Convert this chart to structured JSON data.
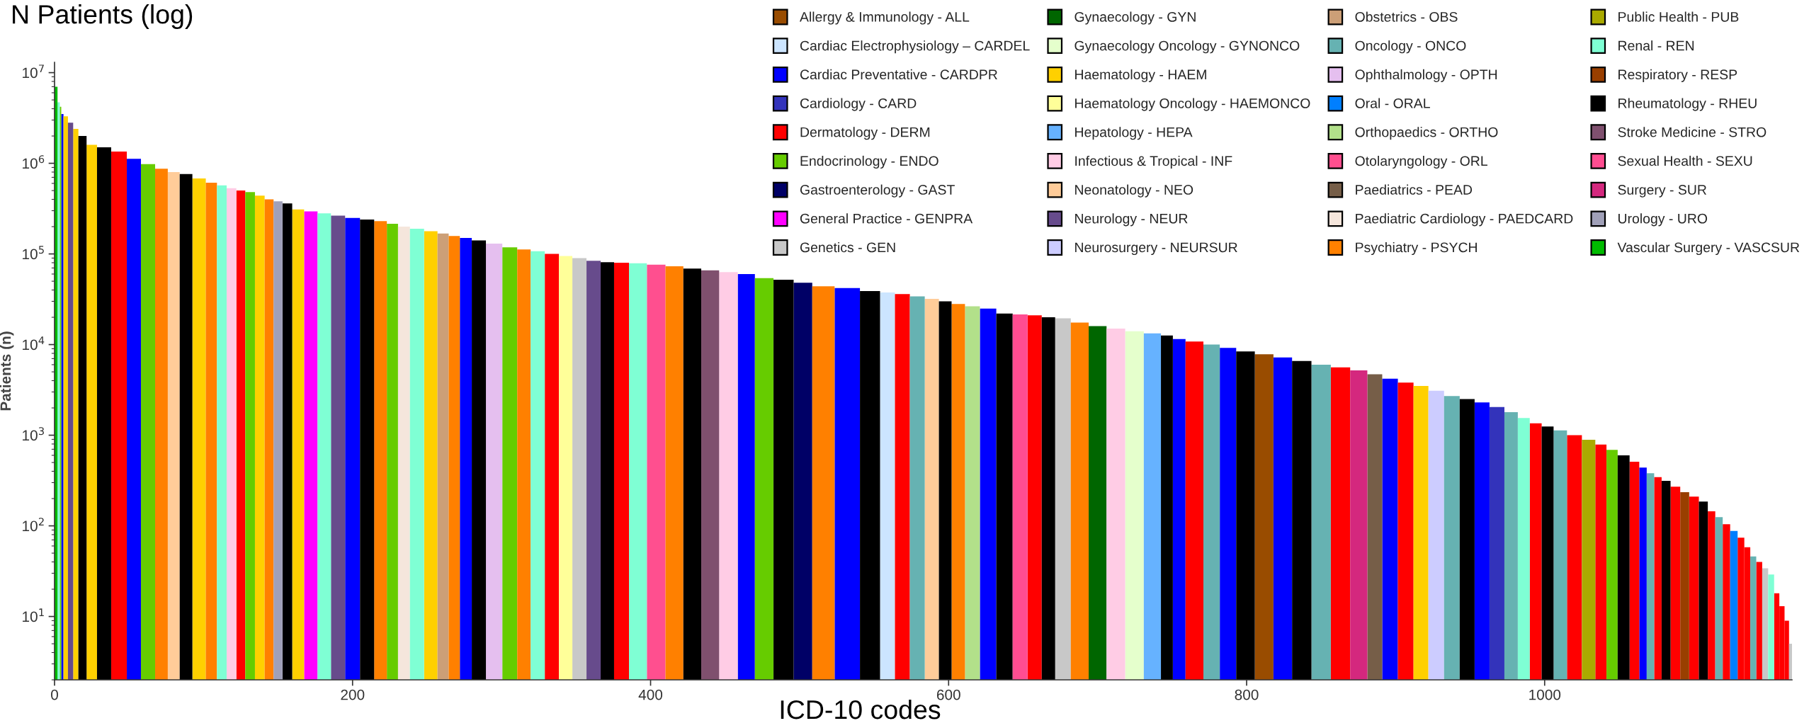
{
  "chart_data": {
    "type": "bar",
    "title": "N Patients (log)",
    "xlabel": "ICD-10 codes",
    "ylabel": "Patients (n)",
    "log": "y",
    "xlim": [
      0,
      1166
    ],
    "xticks": [
      0,
      200,
      400,
      600,
      800,
      1000
    ],
    "ylim": [
      2,
      13000000
    ],
    "yticks": [
      {
        "value": 10,
        "label": "10$^{1}$"
      },
      {
        "value": 100,
        "label": "10$^{2}$"
      },
      {
        "value": 1000,
        "label": "10$^{3}$"
      },
      {
        "value": 10000,
        "label": "10$^{4}$"
      },
      {
        "value": 100000,
        "label": "10$^{5}$"
      },
      {
        "value": 1000000,
        "label": "10$^{6}$"
      },
      {
        "value": 10000000,
        "label": "10$^{7}$"
      }
    ],
    "legend": "top right",
    "series": [
      {
        "name": "Allergy & Immunology - ALL",
        "color": "#994c00",
        "x": [
          812
        ],
        "values": [
          7800
        ]
      },
      {
        "name": "Cardiac Electrophysiology – CARDEL",
        "color": "#cce5ff",
        "x": [
          559
        ],
        "values": [
          37500
        ]
      },
      {
        "name": "Cardiac Preventative - CARDPR",
        "color": "#0000ff",
        "x": [
          5,
          53,
          200,
          276,
          465,
          532,
          626,
          753,
          787,
          824,
          896,
          958,
          1066
        ],
        "values": [
          3500000,
          1120000,
          250000,
          150000,
          60000,
          42000,
          25000,
          11500,
          9200,
          7200,
          4200,
          2300,
          440
        ]
      },
      {
        "name": "Cardiology - CARD",
        "color": "#3333bb",
        "x": [
          968
        ],
        "values": [
          2050
        ]
      },
      {
        "name": "Dermatology - DERM",
        "color": "#ff0000",
        "x": [
          44,
          125,
          334,
          380,
          569,
          658,
          765,
          863,
          907,
          994,
          1020,
          1038,
          1061,
          1076,
          1088,
          1100,
          1112,
          1122,
          1132,
          1136,
          1144,
          1156,
          1159,
          1163
        ],
        "values": [
          1350000,
          500000,
          100000,
          80000,
          36000,
          21000,
          10800,
          5600,
          3800,
          1350,
          1000,
          790,
          510,
          345,
          270,
          210,
          145,
          104,
          74,
          58,
          40,
          18,
          13,
          9
        ]
      },
      {
        "name": "Endocrinology - ENDO",
        "color": "#66cc00",
        "x": [
          4,
          63,
          131,
          227,
          306,
          475,
          1045
        ],
        "values": [
          4200000,
          980000,
          480000,
          215000,
          118000,
          54000,
          690
        ]
      },
      {
        "name": "Gastroenterology - GAST",
        "color": "#000066",
        "x": [
          502
        ],
        "values": [
          48000
        ]
      },
      {
        "name": "General Practice - GENPRA",
        "color": "#ff00ff",
        "x": [
          172
        ],
        "values": [
          295000
        ]
      },
      {
        "name": "Genetics - GEN",
        "color": "#c8c8c8",
        "x": [
          352,
          676,
          1148,
          1165
        ],
        "values": [
          90000,
          19500,
          34,
          5
        ]
      },
      {
        "name": "Gynaecology - GYN",
        "color": "#006600",
        "x": [
          700
        ],
        "values": [
          16000
        ]
      },
      {
        "name": "Gynaecology Oncology - GYNONCO",
        "color": "#e5ffcc",
        "x": [
          725
        ],
        "values": [
          14000
        ]
      },
      {
        "name": "Haematology - HAEM",
        "color": "#ffd000",
        "x": [
          7,
          14,
          25,
          97,
          138,
          163,
          253,
          917
        ],
        "values": [
          3300000,
          2400000,
          1600000,
          680000,
          440000,
          310000,
          178000,
          3500
        ]
      },
      {
        "name": "Haematology Oncology - HAEMONCO",
        "color": "#ffff99",
        "x": [
          343
        ],
        "values": [
          95000
        ]
      },
      {
        "name": "Hepatology - HEPA",
        "color": "#66b2ff",
        "x": [
          737
        ],
        "values": [
          13300
        ]
      },
      {
        "name": "Infectious & Tropical - INF",
        "color": "#ffcce5",
        "x": [
          119,
          452,
          712
        ],
        "values": [
          530000,
          63000,
          15000
        ]
      },
      {
        "name": "Neonatology - NEO",
        "color": "#ffcc99",
        "x": [
          80,
          589
        ],
        "values": [
          800000,
          32000
        ]
      },
      {
        "name": "Neurology - NEUR",
        "color": "#674b8c",
        "x": [
          11,
          190,
          362
        ],
        "values": [
          2800000,
          265000,
          84000
        ]
      },
      {
        "name": "Neurosurgery - NEURSUR",
        "color": "#ccccff",
        "x": [
          927
        ],
        "values": [
          3100
        ]
      },
      {
        "name": "Obstetrics - OBS",
        "color": "#cc9f77",
        "x": [
          261
        ],
        "values": [
          168000
        ]
      },
      {
        "name": "Oncology - ONCO",
        "color": "#66b2b2",
        "x": [
          579,
          777,
          850,
          938,
          978,
          1010,
          1071,
          1117,
          1140
        ],
        "values": [
          34000,
          10000,
          6000,
          2700,
          1800,
          1130,
          380,
          125,
          46
        ]
      },
      {
        "name": "Ophthalmology - OPTH",
        "color": "#e5bfef",
        "x": [
          295
        ],
        "values": [
          130000
        ]
      },
      {
        "name": "Oral - ORAL",
        "color": "#007fff",
        "x": [
          1127
        ],
        "values": [
          88
        ]
      },
      {
        "name": "Orthopaedics - ORTHO",
        "color": "#b2e08a",
        "x": [
          616
        ],
        "values": [
          26500
        ]
      },
      {
        "name": "Otolaryngology - ORL",
        "color": "#ff4f8f",
        "x": [
          404
        ],
        "values": [
          76000
        ]
      },
      {
        "name": "Paediatrics - PEAD",
        "color": "#765e48",
        "x": [
          886
        ],
        "values": [
          4700
        ]
      },
      {
        "name": "Paediatric Cardiology - PAEDCARD",
        "color": "#f5e6dc",
        "x": [
          234
        ],
        "values": [
          200000
        ]
      },
      {
        "name": "Psychiatry - PSYCH",
        "color": "#ff8000",
        "x": [
          72,
          106,
          144,
          219,
          268,
          315,
          416,
          515,
          606,
          688
        ],
        "values": [
          870000,
          610000,
          400000,
          230000,
          158000,
          112000,
          73000,
          44000,
          28000,
          17500
        ]
      },
      {
        "name": "Public Health - PUB",
        "color": "#aaaa00",
        "x": [
          1030
        ],
        "values": [
          890
        ]
      },
      {
        "name": "Renal - REN",
        "color": "#7fffd4",
        "x": [
          3,
          112,
          181,
          243,
          324,
          391,
          986,
          1152
        ],
        "values": [
          4700000,
          570000,
          280000,
          190000,
          107000,
          79000,
          1550,
          29
        ]
      },
      {
        "name": "Respiratory - RESP",
        "color": "#993f00",
        "x": [
          1094
        ],
        "values": [
          235
        ]
      },
      {
        "name": "Rheumatology - RHEU",
        "color": "#000000",
        "x": [
          18,
          32,
          88,
          156,
          210,
          284,
          371,
          428,
          490,
          549,
          598,
          638,
          667,
          748,
          799,
          837,
          948,
          1002,
          1053,
          1081,
          1107
        ],
        "values": [
          2000000,
          1500000,
          760000,
          360000,
          240000,
          141000,
          81000,
          69000,
          52000,
          39000,
          30000,
          22000,
          20000,
          12600,
          8400,
          6600,
          2500,
          1250,
          600,
          314,
          185
        ]
      },
      {
        "name": "Stroke Medicine - STRO",
        "color": "#7f506e",
        "x": [
          440
        ],
        "values": [
          66000
        ]
      },
      {
        "name": "Sexual Health - SEXU",
        "color": "#ff4d91",
        "x": [
          648
        ],
        "values": [
          21500
        ]
      },
      {
        "name": "Surgery - SUR",
        "color": "#d4287e",
        "x": [
          876
        ],
        "values": [
          5200
        ]
      },
      {
        "name": "Urology - URO",
        "color": "#a0a0b8",
        "x": [
          150
        ],
        "values": [
          380000
        ]
      },
      {
        "name": "Vascular Surgery - VASCSUR",
        "color": "#00bb00",
        "x": [
          1
        ],
        "values": [
          7000000
        ]
      }
    ]
  }
}
